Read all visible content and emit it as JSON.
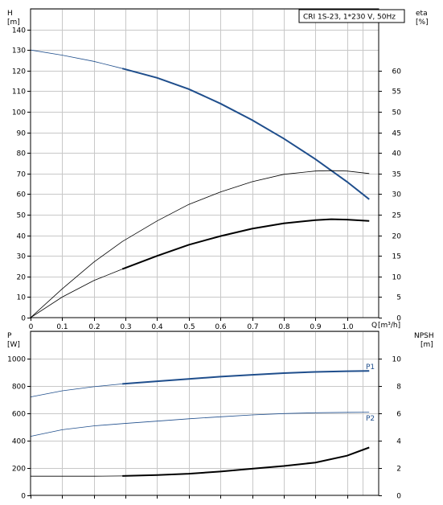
{
  "chart_data": [
    {
      "type": "line",
      "title": "CRI 1S-23, 1*230 V, 50Hz",
      "ylabel_left": "H",
      "ylabel_left_unit": "[m]",
      "ylabel_right": "eta",
      "ylabel_right_unit": "[%]",
      "xlabel": "Q",
      "xlabel_unit": "[m³/h]",
      "xlim": [
        0,
        1.1
      ],
      "ylim_left": [
        0,
        150
      ],
      "ylim_right": [
        0,
        75
      ],
      "x_ticks": [
        "0",
        "0.1",
        "0.2",
        "0.3",
        "0.4",
        "0.5",
        "0.6",
        "0.7",
        "0.8",
        "0.9",
        "1.0"
      ],
      "y_ticks_left": [
        "0",
        "10",
        "20",
        "30",
        "40",
        "50",
        "60",
        "70",
        "80",
        "90",
        "100",
        "110",
        "120",
        "130",
        "140"
      ],
      "y_ticks_right": [
        "0",
        "5",
        "10",
        "15",
        "20",
        "25",
        "30",
        "35",
        "40",
        "45",
        "50",
        "55",
        "60"
      ],
      "grid": true,
      "series": [
        {
          "axis": "left",
          "color": "#1f4e8c",
          "x": [
            0,
            0.1,
            0.2,
            0.29,
            0.4,
            0.5,
            0.6,
            0.7,
            0.8,
            0.9,
            1.0,
            1.07
          ],
          "y": [
            130,
            127.5,
            124.5,
            121,
            116.5,
            111,
            104,
            96,
            87,
            77,
            66,
            57.5
          ],
          "bold_from": 0.29
        },
        {
          "axis": "right",
          "color": "#000000",
          "x": [
            0,
            0.1,
            0.2,
            0.29,
            0.4,
            0.5,
            0.6,
            0.7,
            0.8,
            0.9,
            0.95,
            1.0,
            1.07
          ],
          "y": [
            0,
            7,
            13.5,
            18.5,
            23.5,
            27.5,
            30.5,
            33,
            34.8,
            35.6,
            35.7,
            35.6,
            35
          ],
          "bold_from": 2
        },
        {
          "axis": "right",
          "color": "#000000",
          "x": [
            0,
            0.1,
            0.2,
            0.29,
            0.4,
            0.5,
            0.6,
            0.7,
            0.8,
            0.9,
            0.95,
            1.0,
            1.07
          ],
          "y": [
            0,
            5,
            9,
            11.8,
            15,
            17.7,
            19.8,
            21.6,
            22.9,
            23.7,
            23.9,
            23.8,
            23.5
          ],
          "bold_from": 0.29
        }
      ]
    },
    {
      "type": "line",
      "ylabel_left": "P",
      "ylabel_left_unit": "[W]",
      "ylabel_right": "NPSH",
      "ylabel_right_unit": "[m]",
      "xlim": [
        0,
        1.1
      ],
      "ylim_left": [
        0,
        1200
      ],
      "ylim_right": [
        0,
        12
      ],
      "y_ticks_left": [
        "0",
        "200",
        "400",
        "600",
        "800",
        "1000"
      ],
      "y_ticks_right": [
        "0",
        "2",
        "4",
        "6",
        "8",
        "10"
      ],
      "grid": true,
      "series": [
        {
          "name": "P1",
          "axis": "left",
          "color": "#1f4e8c",
          "x": [
            0,
            0.1,
            0.2,
            0.29,
            0.4,
            0.5,
            0.6,
            0.7,
            0.8,
            0.9,
            1.0,
            1.07
          ],
          "y": [
            720,
            765,
            795,
            815,
            835,
            852,
            868,
            882,
            894,
            903,
            908,
            910
          ],
          "bold_from": 0.29
        },
        {
          "name": "P2",
          "axis": "left",
          "color": "#1f4e8c",
          "x": [
            0,
            0.1,
            0.2,
            0.29,
            0.4,
            0.5,
            0.6,
            0.7,
            0.8,
            0.9,
            1.0,
            1.07
          ],
          "y": [
            432,
            480,
            508,
            525,
            543,
            560,
            575,
            588,
            598,
            604,
            607,
            608
          ],
          "bold_from": 2
        },
        {
          "axis": "right",
          "color": "#000000",
          "x": [
            0,
            0.1,
            0.2,
            0.29,
            0.4,
            0.5,
            0.6,
            0.7,
            0.8,
            0.9,
            1.0,
            1.07
          ],
          "y": [
            1.4,
            1.4,
            1.4,
            1.42,
            1.48,
            1.58,
            1.74,
            1.95,
            2.15,
            2.4,
            2.9,
            3.5
          ],
          "bold_from": 0.29
        }
      ]
    }
  ]
}
